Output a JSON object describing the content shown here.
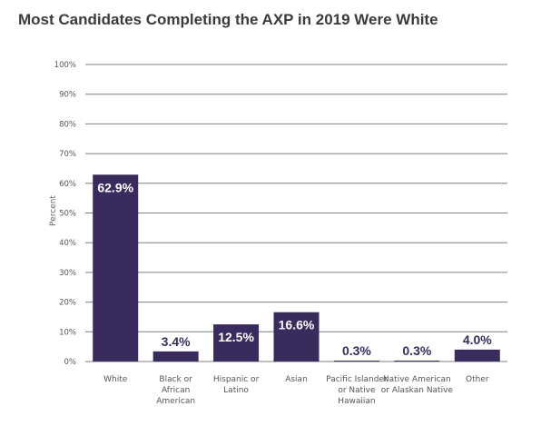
{
  "chart_data": {
    "type": "bar",
    "title": "Most Candidates Completing the AXP in 2019 Were White",
    "xlabel": "",
    "ylabel": "Percent",
    "ylim": [
      0,
      100
    ],
    "yticks": [
      "0%",
      "10%",
      "20%",
      "30%",
      "40%",
      "50%",
      "60%",
      "70%",
      "80%",
      "90%",
      "100%"
    ],
    "grid": true,
    "categories": [
      [
        "White"
      ],
      [
        "Black or",
        "African",
        "American"
      ],
      [
        "Hispanic or",
        "Latino"
      ],
      [
        "Asian"
      ],
      [
        "Pacific Islander",
        "or Native",
        "Hawaiian"
      ],
      [
        "Native American",
        "or Alaskan Native"
      ],
      [
        "Other"
      ]
    ],
    "values": [
      62.9,
      3.4,
      12.5,
      16.6,
      0.3,
      0.3,
      4.0
    ],
    "data_labels": [
      "62.9%",
      "3.4%",
      "12.5%",
      "16.6%",
      "0.3%",
      "0.3%",
      "4.0%"
    ],
    "bar_color": "#3a2b5e",
    "grid_color": "#7f7f7f"
  }
}
